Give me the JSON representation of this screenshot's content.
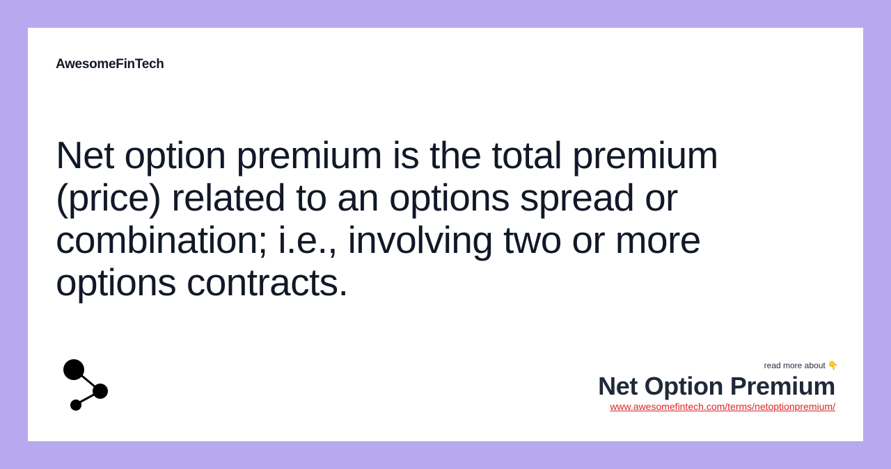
{
  "brand": {
    "name": "AwesomeFinTech"
  },
  "definition": {
    "text": "Net option premium is the total premium (price) related to an options spread or combination; i.e., involving two or more options contracts."
  },
  "footer": {
    "read_more": "read more about 👇",
    "term_title": "Net Option Premium",
    "term_url": "www.awesomefintech.com/terms/netoptionpremium/"
  },
  "icons": {
    "logo": "share-network-icon"
  },
  "colors": {
    "background": "#b8a9ef",
    "card": "#ffffff",
    "text": "#111827",
    "link": "#dc2626"
  }
}
